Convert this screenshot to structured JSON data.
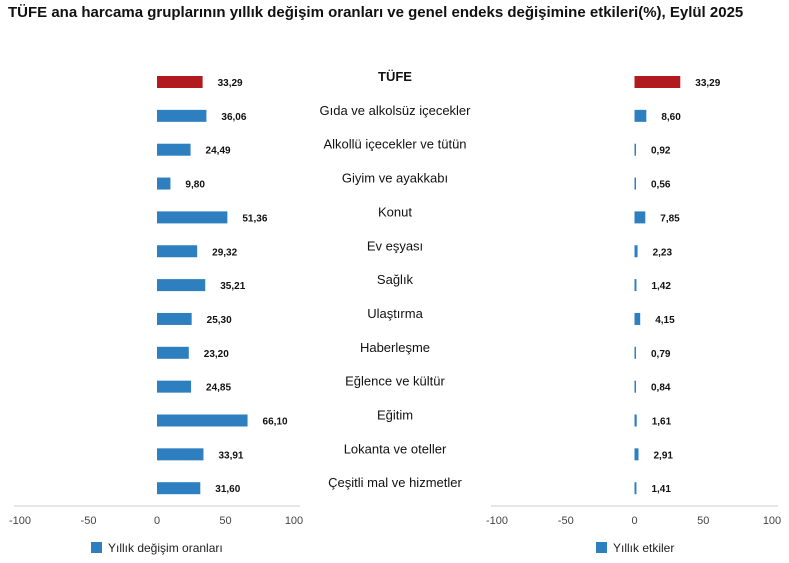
{
  "title": "TÜFE ana harcama gruplarının yıllık değişim oranları ve genel endeks değişimine etkileri(%), Eylül 2025",
  "chart_data": {
    "type": "bar",
    "orientation": "horizontal",
    "categories": [
      "TÜFE",
      "Gıda ve alkolsüz içecekler",
      "Alkollü içecekler ve tütün",
      "Giyim ve ayakkabı",
      "Konut",
      "Ev eşyası",
      "Sağlık",
      "Ulaştırma",
      "Haberleşme",
      "Eğlence ve kültür",
      "Eğitim",
      "Lokanta ve oteller",
      "Çeşitli mal ve hizmetler"
    ],
    "series": [
      {
        "name": "Yıllık değişim oranları",
        "values": [
          33.29,
          36.06,
          24.49,
          9.8,
          51.36,
          29.32,
          35.21,
          25.3,
          23.2,
          24.85,
          66.1,
          33.91,
          31.6
        ],
        "labels": [
          "33,29",
          "36,06",
          "24,49",
          "9,80",
          "51,36",
          "29,32",
          "35,21",
          "25,30",
          "23,20",
          "24,85",
          "66,10",
          "33,91",
          "31,60"
        ]
      },
      {
        "name": "Yıllık etkiler",
        "values": [
          33.29,
          8.6,
          0.92,
          0.56,
          7.85,
          2.23,
          1.42,
          4.15,
          0.79,
          0.84,
          1.61,
          2.91,
          1.41
        ],
        "labels": [
          "33,29",
          "8,60",
          "0,92",
          "0,56",
          "7,85",
          "2,23",
          "1,42",
          "4,15",
          "0,79",
          "0,84",
          "1,61",
          "2,91",
          "1,41"
        ]
      }
    ],
    "xlim": [
      -100,
      100
    ],
    "ticks": [
      -100,
      -50,
      0,
      50,
      100
    ],
    "tick_labels": [
      "-100",
      "-50",
      "0",
      "50",
      "100"
    ],
    "highlight_category": "TÜFE",
    "colors": {
      "bar": "#2e7fc0",
      "highlight": "#b11a1f",
      "axis": "#cfcfcf"
    },
    "legend_position": "bottom-left",
    "grid": false
  }
}
